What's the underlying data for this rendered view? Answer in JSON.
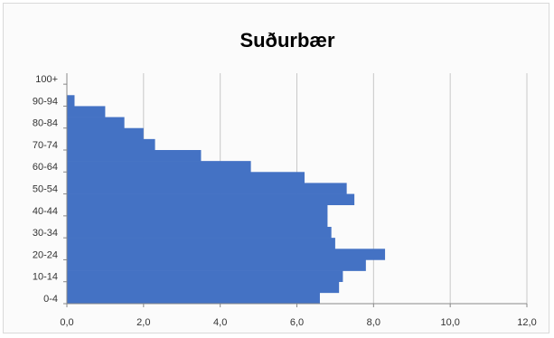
{
  "chart_data": {
    "type": "bar",
    "orientation": "horizontal",
    "title": "Suðurbær",
    "categories": [
      "0-4",
      "5-9",
      "10-14",
      "15-19",
      "20-24",
      "25-29",
      "30-34",
      "35-39",
      "40-44",
      "45-49",
      "50-54",
      "55-59",
      "60-64",
      "65-69",
      "70-74",
      "75-79",
      "80-84",
      "85-89",
      "90-94",
      "95-99",
      "100+"
    ],
    "category_labels_shown": [
      "0-4",
      "10-14",
      "20-24",
      "30-34",
      "40-44",
      "50-54",
      "60-64",
      "70-74",
      "80-84",
      "90-94",
      "100+"
    ],
    "values": [
      6.6,
      7.1,
      7.2,
      7.8,
      8.3,
      7.0,
      6.9,
      6.8,
      6.8,
      7.5,
      7.3,
      6.2,
      4.8,
      3.5,
      2.3,
      2.0,
      1.5,
      1.0,
      0.2,
      0.0,
      0.0
    ],
    "xlim": [
      0,
      12
    ],
    "x_ticks": [
      "0,0",
      "2,0",
      "4,0",
      "6,0",
      "8,0",
      "10,0",
      "12,0"
    ],
    "xlabel": "",
    "ylabel": "",
    "grid": "vertical",
    "legend": "none",
    "bar_color": "#4472c4"
  }
}
